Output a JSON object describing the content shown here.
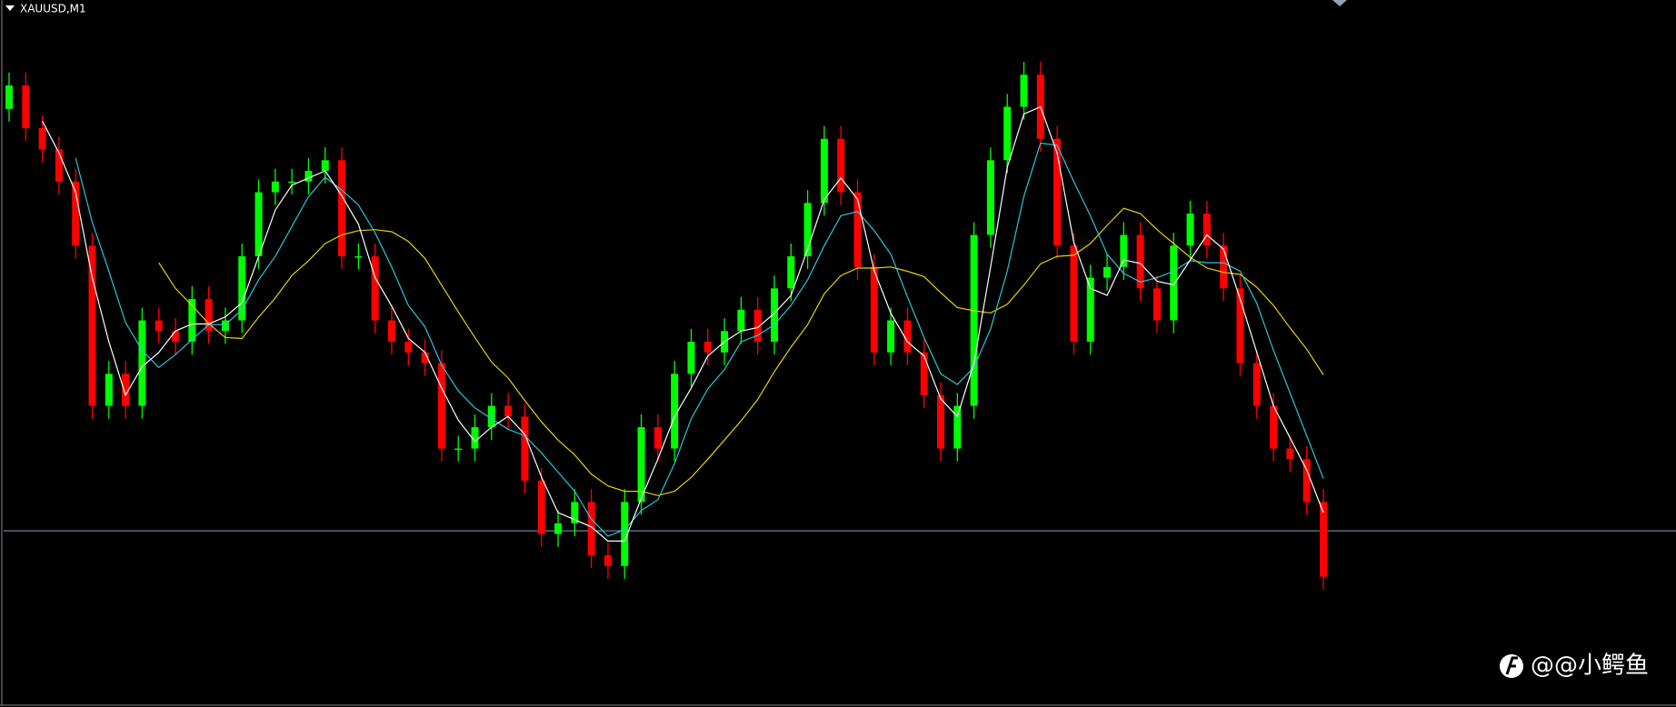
{
  "chart_data": {
    "type": "candlestick",
    "title": "XAUUSD,M1",
    "watermark": "@@小鳄鱼",
    "up_color": "#00ff00",
    "down_color": "#ff0000",
    "level_color": "#7fa6c4",
    "level": 165,
    "ylim": [
      0,
      662
    ],
    "open": [
      560,
      582,
      542,
      522,
      492,
      432,
      282,
      312,
      282,
      362,
      352,
      342,
      382,
      352,
      362,
      422,
      482,
      492,
      492,
      502,
      512,
      422,
      422,
      362,
      342,
      332,
      322,
      242,
      242,
      262,
      282,
      272,
      212,
      162,
      172,
      192,
      142,
      132,
      192,
      262,
      242,
      312,
      342,
      332,
      352,
      372,
      342,
      392,
      422,
      472,
      532,
      482,
      412,
      332,
      362,
      332,
      292,
      242,
      282,
      442,
      512,
      562,
      592,
      532,
      432,
      342,
      402,
      412,
      442,
      392,
      362,
      432,
      462,
      432,
      392,
      322,
      282,
      242,
      232,
      192
    ],
    "high": [
      594,
      594,
      554,
      534,
      504,
      444,
      324,
      324,
      374,
      374,
      364,
      394,
      394,
      374,
      434,
      494,
      504,
      504,
      514,
      524,
      524,
      434,
      434,
      374,
      354,
      344,
      334,
      254,
      274,
      294,
      294,
      284,
      224,
      184,
      204,
      204,
      154,
      204,
      274,
      274,
      324,
      354,
      354,
      364,
      384,
      384,
      404,
      434,
      484,
      544,
      544,
      494,
      424,
      374,
      374,
      344,
      304,
      294,
      454,
      524,
      574,
      604,
      604,
      544,
      444,
      414,
      424,
      454,
      454,
      404,
      444,
      474,
      474,
      444,
      404,
      334,
      294,
      254,
      244,
      204
    ],
    "low": [
      548,
      530,
      510,
      480,
      420,
      270,
      270,
      270,
      270,
      340,
      330,
      330,
      340,
      340,
      350,
      410,
      470,
      480,
      480,
      490,
      410,
      410,
      350,
      330,
      320,
      310,
      230,
      230,
      230,
      250,
      260,
      200,
      150,
      150,
      160,
      130,
      120,
      120,
      180,
      230,
      230,
      300,
      320,
      320,
      340,
      330,
      330,
      380,
      410,
      460,
      470,
      400,
      320,
      320,
      320,
      280,
      230,
      230,
      270,
      430,
      500,
      550,
      520,
      420,
      330,
      330,
      390,
      400,
      380,
      350,
      350,
      420,
      420,
      380,
      310,
      270,
      230,
      220,
      180,
      110
    ],
    "close": [
      582,
      542,
      522,
      492,
      432,
      282,
      312,
      282,
      362,
      352,
      342,
      382,
      352,
      362,
      422,
      482,
      492,
      492,
      502,
      512,
      422,
      422,
      362,
      342,
      332,
      322,
      242,
      242,
      262,
      282,
      272,
      212,
      162,
      172,
      192,
      142,
      132,
      192,
      262,
      242,
      312,
      342,
      332,
      352,
      372,
      342,
      392,
      422,
      472,
      532,
      482,
      412,
      332,
      362,
      332,
      292,
      242,
      282,
      442,
      512,
      562,
      592,
      532,
      432,
      342,
      402,
      412,
      442,
      392,
      362,
      432,
      462,
      432,
      392,
      322,
      282,
      242,
      232,
      192,
      122
    ]
  }
}
